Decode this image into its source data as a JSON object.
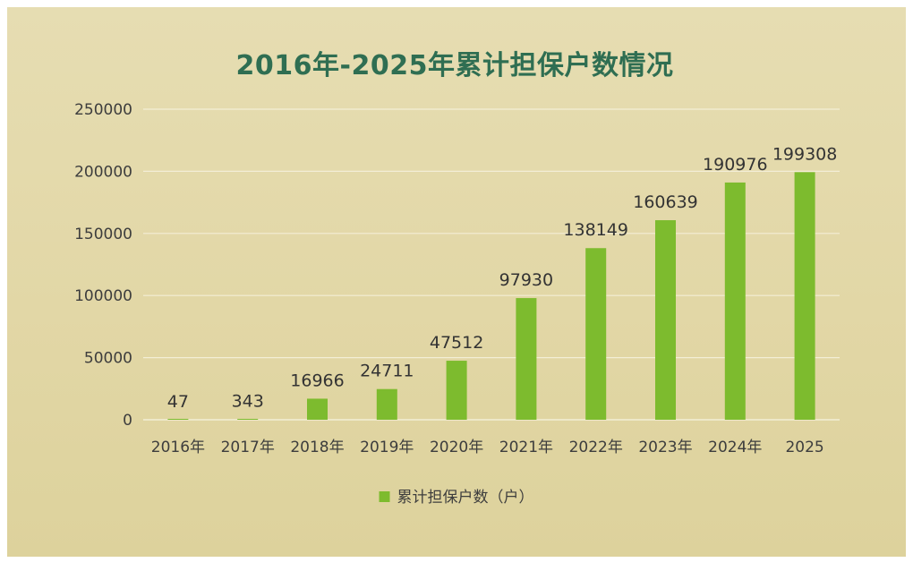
{
  "chart_data": {
    "type": "bar",
    "title": "2016年-2025年累计担保户数情况",
    "categories": [
      "2016年",
      "2017年",
      "2018年",
      "2019年",
      "2020年",
      "2021年",
      "2022年",
      "2023年",
      "2024年",
      "2025"
    ],
    "series": [
      {
        "name": "累计担保户数（户）",
        "values": [
          47,
          343,
          16966,
          24711,
          47512,
          97930,
          138149,
          160639,
          190976,
          199308
        ],
        "data_labels": [
          "47",
          "343",
          "16966",
          "24711",
          "47512",
          "97930",
          "138149",
          "160639",
          "190976",
          "199308"
        ],
        "color": "#7dbb2e"
      }
    ],
    "yticks": [
      "0",
      "50000",
      "100000",
      "150000",
      "200000",
      "250000"
    ],
    "ylim": [
      0,
      250000
    ],
    "grid": true,
    "legend": "bottom-center"
  },
  "colors": {
    "title": "#2f6e52",
    "bar": "#7dbb2e",
    "grid": "#f3eed6",
    "background": "#e2d7a6"
  }
}
